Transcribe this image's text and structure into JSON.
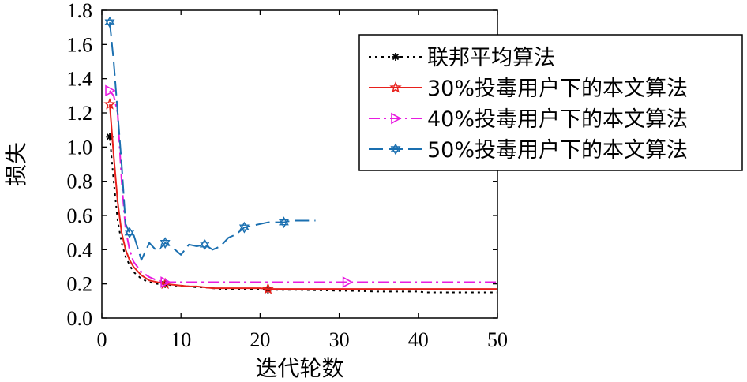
{
  "chart_data": {
    "type": "line",
    "title": "",
    "xlabel": "迭代轮数",
    "ylabel": "损失",
    "xlim": [
      0,
      50
    ],
    "ylim": [
      0,
      1.8
    ],
    "xticks": [
      "0",
      "10",
      "20",
      "30",
      "40",
      "50"
    ],
    "yticks": [
      "0.0",
      "0.2",
      "0.4",
      "0.6",
      "0.8",
      "1.0",
      "1.2",
      "1.4",
      "1.6",
      "1.8"
    ],
    "grid": false,
    "legend_position": "top-right",
    "series": [
      {
        "name": "联邦平均算法",
        "color": "#000000",
        "dash": "3,5",
        "marker": "asterisk",
        "marker_every": [
          0,
          10,
          20,
          30,
          40
        ],
        "x": [
          1,
          1.5,
          2,
          2.5,
          3,
          3.5,
          4,
          5,
          6,
          7,
          8,
          9,
          10,
          11,
          12,
          13,
          14,
          15,
          17,
          20,
          21,
          25,
          30,
          31,
          35,
          40,
          41,
          45,
          50
        ],
        "y": [
          1.06,
          0.8,
          0.57,
          0.44,
          0.36,
          0.31,
          0.27,
          0.23,
          0.21,
          0.2,
          0.2,
          0.19,
          0.19,
          0.185,
          0.18,
          0.18,
          0.175,
          0.17,
          0.17,
          0.17,
          0.165,
          0.165,
          0.16,
          0.16,
          0.155,
          0.155,
          0.15,
          0.15,
          0.15
        ]
      },
      {
        "name": "30%投毒用户下的本文算法",
        "color": "#e8201c",
        "dash": "",
        "marker": "star",
        "marker_every": [
          0,
          10,
          20,
          30,
          40
        ],
        "x": [
          1,
          1.5,
          2,
          2.5,
          3,
          3.5,
          4,
          5,
          6,
          7,
          8,
          9,
          10,
          11,
          12,
          13,
          14,
          15,
          17,
          20,
          21,
          25,
          30,
          31,
          35,
          40,
          41,
          45,
          50
        ],
        "y": [
          1.25,
          0.95,
          0.68,
          0.5,
          0.4,
          0.34,
          0.3,
          0.25,
          0.22,
          0.21,
          0.2,
          0.195,
          0.19,
          0.185,
          0.185,
          0.18,
          0.175,
          0.175,
          0.175,
          0.175,
          0.17,
          0.17,
          0.17,
          0.17,
          0.17,
          0.17,
          0.17,
          0.17,
          0.17
        ]
      },
      {
        "name": "40%投毒用户下的本文算法",
        "color": "#e81ce0",
        "dash": "14,5,3,5",
        "marker": "triangle-right",
        "marker_every": [
          0,
          10,
          20,
          30,
          40
        ],
        "x": [
          1,
          1.5,
          2,
          2.5,
          3,
          3.5,
          4,
          5,
          6,
          7,
          8,
          9,
          10,
          11,
          12,
          15,
          20,
          21,
          25,
          30,
          31,
          35,
          40,
          41,
          45,
          50
        ],
        "y": [
          1.33,
          1.3,
          1.2,
          0.8,
          0.52,
          0.4,
          0.33,
          0.27,
          0.24,
          0.22,
          0.21,
          0.21,
          0.21,
          0.21,
          0.21,
          0.21,
          0.21,
          0.21,
          0.21,
          0.21,
          0.21,
          0.21,
          0.21,
          0.21,
          0.21,
          0.21
        ]
      },
      {
        "name": "50%投毒用户下的本文算法",
        "color": "#1a6fb0",
        "dash": "18,7",
        "marker": "hexagram",
        "marker_every": [
          0,
          5,
          10,
          15,
          20,
          25
        ],
        "x": [
          1,
          1.5,
          2,
          2.5,
          3,
          3.5,
          4,
          5,
          6,
          7,
          8,
          9,
          10,
          11,
          12,
          13,
          14,
          15,
          16,
          17,
          18,
          19,
          20,
          21,
          22,
          23,
          24,
          25,
          26,
          27
        ],
        "y": [
          1.73,
          1.5,
          1.2,
          0.9,
          0.55,
          0.5,
          0.49,
          0.34,
          0.44,
          0.39,
          0.44,
          0.41,
          0.37,
          0.43,
          0.42,
          0.43,
          0.4,
          0.42,
          0.47,
          0.49,
          0.53,
          0.54,
          0.55,
          0.56,
          0.56,
          0.56,
          0.57,
          0.57,
          0.57,
          0.57
        ]
      }
    ]
  }
}
